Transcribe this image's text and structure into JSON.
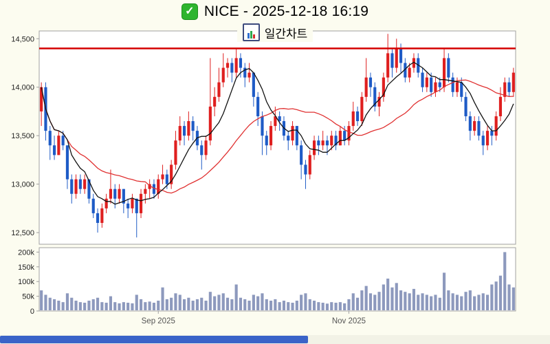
{
  "header": {
    "title": "NICE - 2025-12-18 16:19",
    "subtitle": "일간차트",
    "checkbox_icon": "checked-green-checkbox",
    "subtitle_icon": "mini-bar-chart"
  },
  "chart_data": {
    "type": "candlestick_volume",
    "title": "NICE - 2025-12-18 16:19",
    "subtitle": "일간차트",
    "legend_position": "none",
    "grid": false,
    "price_axis": {
      "min": 12380,
      "max": 14580,
      "ticks": [
        14500,
        14000,
        13500,
        13000,
        12500
      ],
      "labels": [
        "14,500",
        "14,000",
        "13,500",
        "13,000",
        "12,500"
      ]
    },
    "volume_axis": {
      "max": 215000,
      "ticks": [
        200000,
        150000,
        100000,
        50000,
        0
      ],
      "labels": [
        "200k",
        "150k",
        "100k",
        "50k",
        "0"
      ]
    },
    "x_ticks": [
      {
        "index": 27,
        "label": "Sep 2025"
      },
      {
        "index": 71,
        "label": "Nov 2025"
      }
    ],
    "resistance_line": 14400,
    "ma_periods": {
      "fast": 7,
      "slow": 25
    },
    "colors": {
      "up": "#df1f1f",
      "down": "#1e5bc6",
      "volume": "#8d99bd",
      "ma_fast": "#111111",
      "ma_slow": "#e03030",
      "resistance": "#d40000",
      "panel_border": "#a0a0a0",
      "axis_text": "#222222",
      "x_label_text": "#555555"
    },
    "candles": [
      [
        13750,
        14050,
        13600,
        14000,
        70000
      ],
      [
        14000,
        14050,
        13450,
        13550,
        55000
      ],
      [
        13550,
        13600,
        13250,
        13400,
        45000
      ],
      [
        13400,
        13500,
        13250,
        13300,
        40000
      ],
      [
        13300,
        13550,
        13300,
        13500,
        35000
      ],
      [
        13500,
        13550,
        13350,
        13400,
        30000
      ],
      [
        13400,
        13400,
        12950,
        13050,
        60000
      ],
      [
        13050,
        13100,
        12800,
        12900,
        45000
      ],
      [
        12900,
        13100,
        12850,
        13050,
        35000
      ],
      [
        13050,
        13100,
        12900,
        12950,
        30000
      ],
      [
        12950,
        13100,
        12900,
        13050,
        28000
      ],
      [
        13050,
        13050,
        12800,
        12850,
        35000
      ],
      [
        12850,
        12900,
        12650,
        12700,
        40000
      ],
      [
        12700,
        12750,
        12500,
        12600,
        45000
      ],
      [
        12600,
        12800,
        12550,
        12750,
        30000
      ],
      [
        12750,
        12900,
        12700,
        12850,
        28000
      ],
      [
        12850,
        13150,
        12800,
        12950,
        50000
      ],
      [
        12950,
        13000,
        12750,
        12850,
        30000
      ],
      [
        12850,
        13000,
        12800,
        12950,
        26000
      ],
      [
        12950,
        12950,
        12700,
        12800,
        30000
      ],
      [
        12800,
        12850,
        12650,
        12750,
        28000
      ],
      [
        12750,
        12900,
        12700,
        12850,
        26000
      ],
      [
        12850,
        12850,
        12450,
        12700,
        55000
      ],
      [
        12700,
        12950,
        12650,
        12900,
        40000
      ],
      [
        12900,
        13000,
        12800,
        12950,
        30000
      ],
      [
        12950,
        13050,
        12850,
        13000,
        32000
      ],
      [
        13000,
        13050,
        12850,
        12900,
        28000
      ],
      [
        12900,
        13100,
        12850,
        13050,
        35000
      ],
      [
        13050,
        13200,
        13000,
        13100,
        80000
      ],
      [
        13100,
        13150,
        12950,
        13000,
        40000
      ],
      [
        13000,
        13250,
        12950,
        13200,
        45000
      ],
      [
        13200,
        13550,
        13150,
        13450,
        60000
      ],
      [
        13450,
        13700,
        13400,
        13600,
        55000
      ],
      [
        13600,
        13650,
        13400,
        13500,
        40000
      ],
      [
        13500,
        13750,
        13450,
        13650,
        45000
      ],
      [
        13650,
        13700,
        13450,
        13550,
        35000
      ],
      [
        13550,
        13600,
        13350,
        13400,
        40000
      ],
      [
        13400,
        13450,
        13150,
        13300,
        45000
      ],
      [
        13300,
        13500,
        13250,
        13450,
        35000
      ],
      [
        13450,
        14300,
        13400,
        13800,
        65000
      ],
      [
        13800,
        14000,
        13700,
        13900,
        50000
      ],
      [
        13900,
        14200,
        13850,
        14050,
        55000
      ],
      [
        14050,
        14350,
        14000,
        14200,
        60000
      ],
      [
        14200,
        14300,
        14100,
        14250,
        45000
      ],
      [
        14250,
        14300,
        14050,
        14150,
        40000
      ],
      [
        14150,
        14400,
        14100,
        14300,
        90000
      ],
      [
        14300,
        14350,
        14100,
        14200,
        45000
      ],
      [
        14200,
        14250,
        14000,
        14100,
        40000
      ],
      [
        14100,
        14250,
        14050,
        14150,
        35000
      ],
      [
        14150,
        14150,
        13800,
        13900,
        55000
      ],
      [
        13900,
        13950,
        13600,
        13700,
        50000
      ],
      [
        13700,
        13750,
        13300,
        13500,
        60000
      ],
      [
        13500,
        13550,
        13300,
        13400,
        40000
      ],
      [
        13400,
        13650,
        13350,
        13600,
        35000
      ],
      [
        13600,
        13800,
        13550,
        13700,
        40000
      ],
      [
        13700,
        13750,
        13550,
        13650,
        30000
      ],
      [
        13650,
        13700,
        13450,
        13500,
        35000
      ],
      [
        13500,
        13550,
        13350,
        13450,
        30000
      ],
      [
        13450,
        13650,
        13400,
        13600,
        28000
      ],
      [
        13600,
        13600,
        13350,
        13400,
        35000
      ],
      [
        13400,
        13450,
        13050,
        13200,
        55000
      ],
      [
        13200,
        13250,
        12950,
        13100,
        60000
      ],
      [
        13100,
        13350,
        13050,
        13300,
        40000
      ],
      [
        13300,
        13500,
        13250,
        13450,
        35000
      ],
      [
        13450,
        13500,
        13300,
        13400,
        30000
      ],
      [
        13400,
        13550,
        13350,
        13450,
        28000
      ],
      [
        13450,
        13500,
        13300,
        13400,
        25000
      ],
      [
        13400,
        13550,
        13350,
        13500,
        30000
      ],
      [
        13500,
        13550,
        13350,
        13400,
        28000
      ],
      [
        13400,
        13600,
        13400,
        13550,
        30000
      ],
      [
        13550,
        13600,
        13400,
        13450,
        26000
      ],
      [
        13450,
        13650,
        13400,
        13600,
        40000
      ],
      [
        13600,
        13850,
        13550,
        13750,
        60000
      ],
      [
        13750,
        13800,
        13600,
        13650,
        45000
      ],
      [
        13650,
        13950,
        13600,
        13900,
        70000
      ],
      [
        13900,
        14300,
        13850,
        14100,
        85000
      ],
      [
        14100,
        14150,
        13900,
        14000,
        60000
      ],
      [
        14000,
        14050,
        13750,
        13800,
        55000
      ],
      [
        13800,
        13950,
        13700,
        13900,
        65000
      ],
      [
        13900,
        14150,
        13850,
        14100,
        90000
      ],
      [
        14100,
        14550,
        14050,
        14350,
        110000
      ],
      [
        14350,
        14400,
        14100,
        14200,
        80000
      ],
      [
        14200,
        14500,
        14150,
        14400,
        95000
      ],
      [
        14400,
        14450,
        14150,
        14250,
        70000
      ],
      [
        14250,
        14300,
        14050,
        14100,
        65000
      ],
      [
        14100,
        14250,
        14050,
        14200,
        60000
      ],
      [
        14200,
        14350,
        14150,
        14300,
        75000
      ],
      [
        14300,
        14350,
        14100,
        14150,
        55000
      ],
      [
        14150,
        14200,
        13950,
        14000,
        60000
      ],
      [
        14000,
        14150,
        13950,
        14100,
        55000
      ],
      [
        14100,
        14150,
        13900,
        13950,
        50000
      ],
      [
        13950,
        14100,
        13900,
        14050,
        55000
      ],
      [
        14050,
        14100,
        13950,
        14000,
        45000
      ],
      [
        14000,
        14400,
        13950,
        14300,
        130000
      ],
      [
        14300,
        14350,
        14050,
        14100,
        70000
      ],
      [
        14100,
        14150,
        13900,
        13950,
        60000
      ],
      [
        13950,
        14100,
        13900,
        14050,
        55000
      ],
      [
        14050,
        14100,
        13850,
        13900,
        50000
      ],
      [
        13900,
        13950,
        13650,
        13700,
        65000
      ],
      [
        13700,
        13750,
        13450,
        13550,
        70000
      ],
      [
        13550,
        13700,
        13500,
        13650,
        50000
      ],
      [
        13650,
        13700,
        13450,
        13500,
        55000
      ],
      [
        13500,
        13550,
        13300,
        13400,
        60000
      ],
      [
        13400,
        13600,
        13350,
        13550,
        55000
      ],
      [
        13550,
        13600,
        13400,
        13500,
        90000
      ],
      [
        13500,
        13750,
        13450,
        13700,
        100000
      ],
      [
        13700,
        14000,
        13650,
        13900,
        120000
      ],
      [
        13900,
        14100,
        13850,
        14050,
        200000
      ],
      [
        14050,
        14100,
        13900,
        13950,
        90000
      ],
      [
        13950,
        14200,
        13900,
        14150,
        80000
      ]
    ]
  },
  "footer": {
    "scrollbar": {
      "thumb_left_pct": 0,
      "thumb_width_pct": 56
    }
  }
}
